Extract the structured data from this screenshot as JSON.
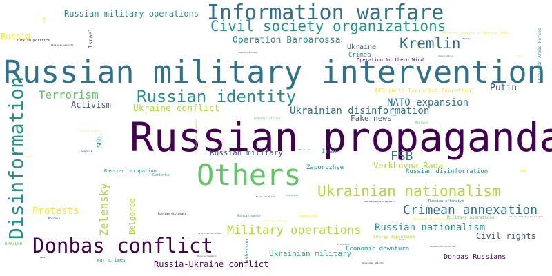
{
  "palette": {
    "c1": "#440154",
    "c2": "#3b528b",
    "c3": "#2c728e",
    "c4": "#21918c",
    "c5": "#28ae80",
    "c6": "#5ec962",
    "c7": "#addc30",
    "c8": "#fde725"
  },
  "words": [
    "Russian propaganda",
    "Russian military intervention",
    "Others",
    "Information warfare",
    "Disinformation",
    "Donbas conflict",
    "Civil society organizations",
    "Russian identity",
    "Kremlin",
    "Ukrainian nationalism",
    "Crimean annexation",
    "Zelensky",
    "Military operations",
    "FSB",
    "Terrorism",
    "Ukrainian disinformation",
    "NATO expansion",
    "Russian nationalism",
    "Protests",
    "Russia-Ukraine conflict",
    "Putin",
    "Operation Barbarossa",
    "Ukraine conflict",
    "Activism",
    "Russian military operations",
    "Verkhovna Rada",
    "Civil rights",
    "Ukrainian military",
    "Belgorod",
    "Russian military",
    "Fake news",
    "Donbas Russians",
    "Russia",
    "Ukraine",
    "Crimea",
    "Zaporozhye",
    "Russian disinformation",
    "Economic downturn",
    "Iran",
    "SBU",
    "Israel",
    "Operation Northern Wind",
    "ATO (Anti-Terrorist Operation)",
    "Russian occupation",
    "Military operations",
    "Kherson",
    "War crimes",
    "Energy dependence",
    "Russian offensive",
    "Ukrainian Armed Forces",
    "Security Service of Ukraine (SBU)",
    "DPR/LPR",
    "Gorlovka",
    "Turkish politics",
    "LPR",
    "DPR",
    "Moldova",
    "Donetsk",
    "Sanctions",
    "Russian agents",
    "Russian diplomacy",
    "Black Sea Fleet",
    "Mariupol",
    "Domestic affairs",
    "Propaganda",
    "Ukrainian disinformation",
    "Russian-Ukrainian war",
    "Disruption",
    "Ukrainian attacks",
    "Minsk agreements",
    "Ukrainian refugees",
    "Donetsk People's Republic",
    "Russian economy",
    "Kharkiv",
    "Russian military intelligence",
    "Zaporizhzhia",
    "Ukrainian offensive",
    "Russian invasion",
    "SBU attack",
    "Lugansk",
    "UNIAN",
    "Gaza",
    "Ukrainian security",
    "Disinformation campaigns",
    "Dnipro",
    "Odesa",
    "Kyiv"
  ]
}
